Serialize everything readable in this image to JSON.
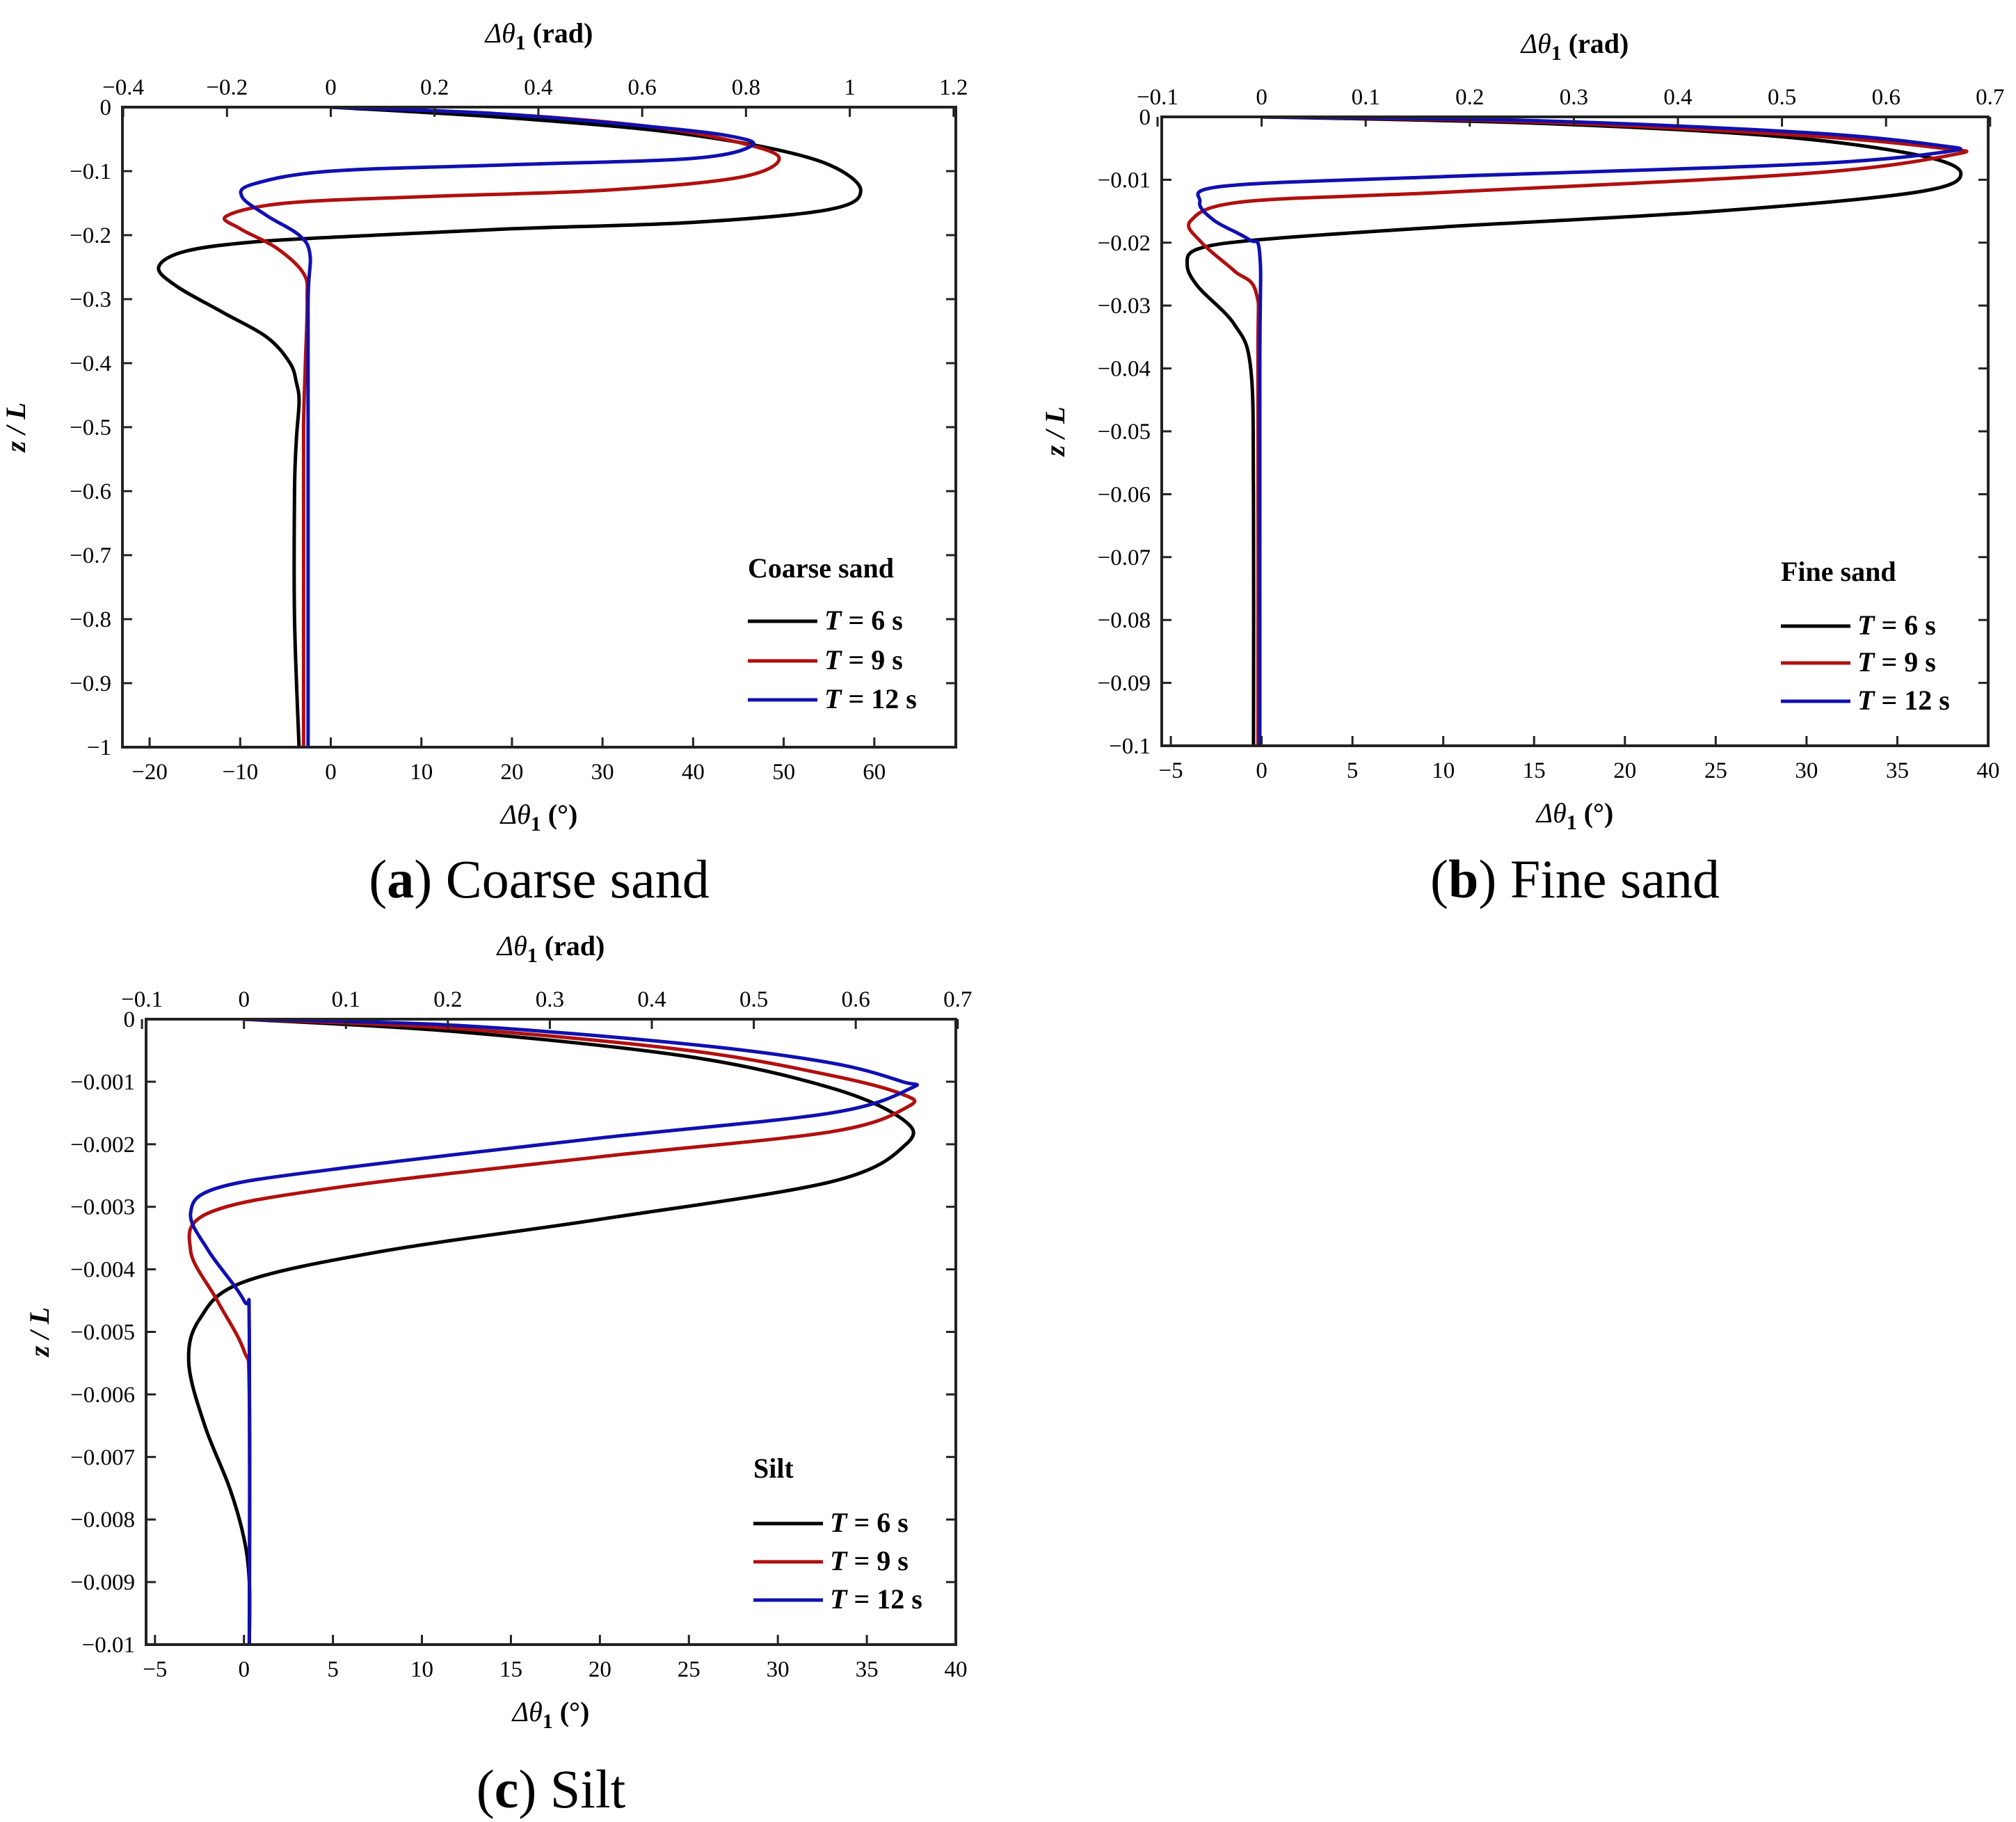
{
  "colors": {
    "T6": "#000000",
    "T9": "#b01010",
    "T12": "#1010b0"
  },
  "chart_data": [
    {
      "id": "a",
      "type": "line",
      "caption_letter": "a",
      "caption_text": "Coarse sand",
      "legend_title": "Coarse sand",
      "xlabel_main": "Δθ",
      "xlabel_sub": "1",
      "xlabel_unit": " (°)",
      "x2label_main": "Δθ",
      "x2label_sub": "1",
      "x2label_unit": " (rad)",
      "ylabel": "z / L",
      "xlim": [
        -23,
        69
      ],
      "ylim": [
        -1,
        0
      ],
      "xticks": [
        "−20",
        "−10",
        "0",
        "10",
        "20",
        "30",
        "40",
        "50",
        "60"
      ],
      "xtick_values": [
        -20,
        -10,
        0,
        10,
        20,
        30,
        40,
        50,
        60
      ],
      "x2ticks": [
        "−0.4",
        "−0.2",
        "0",
        "0.2",
        "0.4",
        "0.6",
        "0.8",
        "1",
        "1.2"
      ],
      "x2tick_values": [
        -0.4,
        -0.2,
        0,
        0.2,
        0.4,
        0.6,
        0.8,
        1.0,
        1.2
      ],
      "yticks": [
        "0",
        "−0.1",
        "−0.2",
        "−0.3",
        "−0.4",
        "−0.5",
        "−0.6",
        "−0.7",
        "−0.8",
        "−0.9",
        "−1"
      ],
      "ytick_values": [
        0,
        -0.1,
        -0.2,
        -0.3,
        -0.4,
        -0.5,
        -0.6,
        -0.7,
        -0.8,
        -0.9,
        -1
      ],
      "series": [
        {
          "key": "T6",
          "label_var": "T",
          "label_rest": " = 6 s",
          "x": [
            0,
            18,
            35,
            47,
            55,
            58.5,
            55,
            40,
            20,
            5,
            -8,
            -16,
            -19,
            -17,
            -12,
            -7,
            -4.5,
            -3.8,
            -3.5,
            -3.8,
            -4.0,
            -4.0,
            -3.5
          ],
          "y": [
            0,
            -0.015,
            -0.035,
            -0.06,
            -0.09,
            -0.13,
            -0.16,
            -0.18,
            -0.19,
            -0.2,
            -0.21,
            -0.225,
            -0.25,
            -0.28,
            -0.32,
            -0.36,
            -0.4,
            -0.43,
            -0.46,
            -0.52,
            -0.6,
            -0.8,
            -1.0
          ]
        },
        {
          "key": "T9",
          "label_var": "T",
          "label_rest": " = 9 s",
          "x": [
            0,
            18,
            35,
            45,
            49.5,
            45,
            30,
            10,
            -5,
            -11.5,
            -10,
            -6,
            -3,
            -2.6,
            -2.8,
            -3.0,
            -3.0,
            -3.0
          ],
          "y": [
            0,
            -0.01,
            -0.03,
            -0.055,
            -0.08,
            -0.11,
            -0.13,
            -0.14,
            -0.15,
            -0.17,
            -0.19,
            -0.22,
            -0.26,
            -0.3,
            -0.4,
            -0.5,
            -0.7,
            -1.0
          ]
        },
        {
          "key": "T12",
          "label_var": "T",
          "label_rest": " = 12 s",
          "x": [
            0,
            18,
            35,
            44,
            46.5,
            40,
            20,
            0,
            -8.5,
            -9.8,
            -7,
            -3.5,
            -2.3,
            -2.5,
            -2.5,
            -2.5
          ],
          "y": [
            0,
            -0.01,
            -0.03,
            -0.045,
            -0.06,
            -0.08,
            -0.09,
            -0.1,
            -0.12,
            -0.14,
            -0.17,
            -0.2,
            -0.23,
            -0.3,
            -0.5,
            -1.0
          ]
        }
      ]
    },
    {
      "id": "b",
      "type": "line",
      "caption_letter": "b",
      "caption_text": "Fine sand",
      "legend_title": "Fine sand",
      "xlabel_main": "Δθ",
      "xlabel_sub": "1",
      "xlabel_unit": " (°)",
      "x2label_main": "Δθ",
      "x2label_sub": "1",
      "x2label_unit": " (rad)",
      "ylabel": "z / L",
      "xlim": [
        -5.5,
        40
      ],
      "ylim": [
        -0.1,
        0
      ],
      "xticks": [
        "−5",
        "0",
        "5",
        "10",
        "15",
        "20",
        "25",
        "30",
        "35",
        "40"
      ],
      "xtick_values": [
        -5,
        0,
        5,
        10,
        15,
        20,
        25,
        30,
        35,
        40
      ],
      "x2ticks": [
        "−0.1",
        "0",
        "0.1",
        "0.2",
        "0.3",
        "0.4",
        "0.5",
        "0.6",
        "0.7"
      ],
      "x2tick_values": [
        -0.1,
        0,
        0.1,
        0.2,
        0.3,
        0.4,
        0.5,
        0.6,
        0.7
      ],
      "yticks": [
        "0",
        "−0.01",
        "−0.02",
        "−0.03",
        "−0.04",
        "−0.05",
        "−0.06",
        "−0.07",
        "−0.08",
        "−0.09",
        "−0.1"
      ],
      "ytick_values": [
        0,
        -0.01,
        -0.02,
        -0.03,
        -0.04,
        -0.05,
        -0.06,
        -0.07,
        -0.08,
        -0.09,
        -0.1
      ],
      "series": [
        {
          "key": "T6",
          "label_var": "T",
          "label_rest": " = 6 s",
          "x": [
            0,
            15,
            28,
            36,
            38.5,
            36,
            25,
            10,
            0,
            -3.5,
            -4.1,
            -3.5,
            -1.5,
            -0.6,
            -0.45,
            -0.45
          ],
          "y": [
            0,
            -0.001,
            -0.003,
            -0.006,
            -0.009,
            -0.012,
            -0.015,
            -0.0175,
            -0.0195,
            -0.021,
            -0.0235,
            -0.027,
            -0.033,
            -0.04,
            -0.06,
            -0.1
          ]
        },
        {
          "key": "T9",
          "label_var": "T",
          "label_rest": " = 9 s",
          "x": [
            0,
            15,
            30,
            37.5,
            38.1,
            30,
            10,
            -1,
            -3.9,
            -3.3,
            -1.5,
            -0.3,
            -0.2,
            -0.2
          ],
          "y": [
            0,
            -0.0008,
            -0.003,
            -0.005,
            -0.006,
            -0.009,
            -0.012,
            -0.0135,
            -0.0165,
            -0.02,
            -0.0245,
            -0.028,
            -0.04,
            -0.1
          ]
        },
        {
          "key": "T12",
          "label_var": "T",
          "label_rest": " = 12 s",
          "x": [
            0,
            15,
            30,
            37.2,
            37.8,
            30,
            10,
            -2,
            -3.4,
            -2.6,
            -0.7,
            -0.1,
            -0.1,
            -0.1
          ],
          "y": [
            0,
            -0.0006,
            -0.0025,
            -0.0045,
            -0.0055,
            -0.0075,
            -0.0095,
            -0.011,
            -0.0135,
            -0.0165,
            -0.0195,
            -0.022,
            -0.04,
            -0.1
          ]
        }
      ]
    },
    {
      "id": "c",
      "type": "line",
      "caption_letter": "c",
      "caption_text": "Silt",
      "legend_title": "Silt",
      "xlabel_main": "Δθ",
      "xlabel_sub": "1",
      "xlabel_unit": " (°)",
      "x2label_main": "Δθ",
      "x2label_sub": "1",
      "x2label_unit": " (rad)",
      "ylabel": "z / L",
      "xlim": [
        -5.5,
        40
      ],
      "ylim": [
        -0.01,
        0
      ],
      "xticks": [
        "−5",
        "0",
        "5",
        "10",
        "15",
        "20",
        "25",
        "30",
        "35",
        "40"
      ],
      "xtick_values": [
        -5,
        0,
        5,
        10,
        15,
        20,
        25,
        30,
        35,
        40
      ],
      "x2ticks": [
        "−0.1",
        "0",
        "0.1",
        "0.2",
        "0.3",
        "0.4",
        "0.5",
        "0.6",
        "0.7"
      ],
      "x2tick_values": [
        -0.1,
        0,
        0.1,
        0.2,
        0.3,
        0.4,
        0.5,
        0.6,
        0.7
      ],
      "yticks": [
        "0",
        "−0.001",
        "−0.002",
        "−0.003",
        "−0.004",
        "−0.005",
        "−0.006",
        "−0.007",
        "−0.008",
        "−0.009",
        "−0.01"
      ],
      "ytick_values": [
        0,
        -0.001,
        -0.002,
        -0.003,
        -0.004,
        -0.005,
        -0.006,
        -0.007,
        -0.008,
        -0.009,
        -0.01
      ],
      "series": [
        {
          "key": "T6",
          "label_var": "T",
          "label_rest": " = 6 s",
          "x": [
            0,
            12,
            25,
            33,
            37,
            37.2,
            33,
            20,
            8,
            0,
            -2.5,
            -3.1,
            -2.2,
            -0.8,
            0,
            0.3,
            0.3
          ],
          "y": [
            0,
            -0.0002,
            -0.0006,
            -0.0011,
            -0.0016,
            -0.002,
            -0.0026,
            -0.0032,
            -0.0037,
            -0.0042,
            -0.0048,
            -0.0055,
            -0.0065,
            -0.0075,
            -0.0083,
            -0.009,
            -0.01
          ]
        },
        {
          "key": "T9",
          "label_var": "T",
          "label_rest": " = 9 s",
          "x": [
            0,
            12,
            25,
            33,
            37,
            37.3,
            33,
            20,
            5,
            -2,
            -3,
            -1.5,
            0,
            0.3,
            0.3
          ],
          "y": [
            0,
            -0.00015,
            -0.0005,
            -0.0009,
            -0.0012,
            -0.0014,
            -0.0018,
            -0.0022,
            -0.0027,
            -0.0031,
            -0.0037,
            -0.0045,
            -0.0053,
            -0.006,
            -0.01
          ]
        },
        {
          "key": "T12",
          "label_var": "T",
          "label_rest": " = 12 s",
          "x": [
            0,
            12,
            25,
            33,
            37,
            37.5,
            33,
            20,
            5,
            -1.5,
            -3,
            -2,
            0,
            0.3,
            0.3
          ],
          "y": [
            0,
            -0.0001,
            -0.0004,
            -0.0007,
            -0.001,
            -0.0011,
            -0.0015,
            -0.0019,
            -0.0024,
            -0.0027,
            -0.0031,
            -0.0037,
            -0.0045,
            -0.005,
            -0.01
          ]
        }
      ]
    }
  ]
}
